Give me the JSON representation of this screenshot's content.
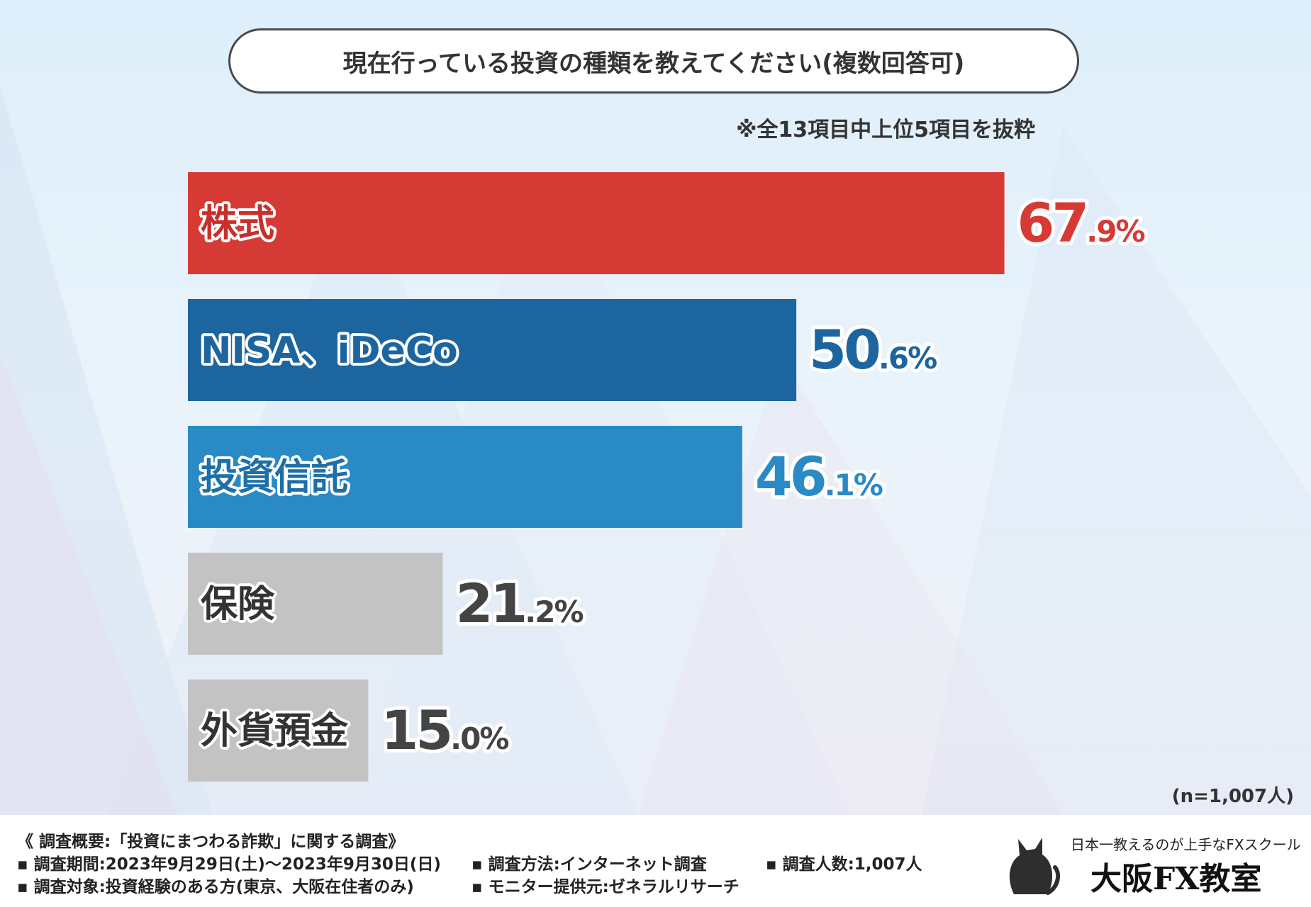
{
  "title": "現在行っている投資の種類を教えてください(複数回答可)",
  "subnote": "※全13項目中上位5項目を抜粋",
  "sample_note": "(n=1,007人)",
  "chart_data": {
    "type": "bar",
    "orientation": "horizontal",
    "title": "現在行っている投資の種類を教えてください(複数回答可)",
    "categories": [
      "株式",
      "NISA、iDeCo",
      "投資信託",
      "保険",
      "外貨預金"
    ],
    "values": [
      67.9,
      50.6,
      46.1,
      21.2,
      15.0
    ],
    "value_labels": [
      "67.9",
      "50.6",
      "46.1",
      "21.2",
      "15.0"
    ],
    "unit": "%",
    "colors": [
      "#d63a35",
      "#1d659f",
      "#2a8ac6",
      "#c3c3c3",
      "#c3c3c3"
    ],
    "label_colors": [
      "#d63a35",
      "#1d659f",
      "#2a8ac6",
      "#444444",
      "#444444"
    ],
    "xlim": [
      0,
      100
    ],
    "grid": false,
    "legend": "none"
  },
  "footer": {
    "overview": "《 調査概要:「投資にまつわる詐欺」に関する調査》",
    "period": "▪ 調査期間:2023年9月29日(土)〜2023年9月30日(日)",
    "method": "▪ 調査方法:インターネット調査",
    "count": "▪ 調査人数:1,007人",
    "target": "▪ 調査対象:投資経験のある方(東京、大阪在住者のみ)",
    "provider": "▪ モニター提供元:ゼネラルリサーチ"
  },
  "logo": {
    "tagline": "日本一教えるのが上手なFXスクール",
    "name": "大阪FX教室",
    "icon": "cat-icon"
  }
}
